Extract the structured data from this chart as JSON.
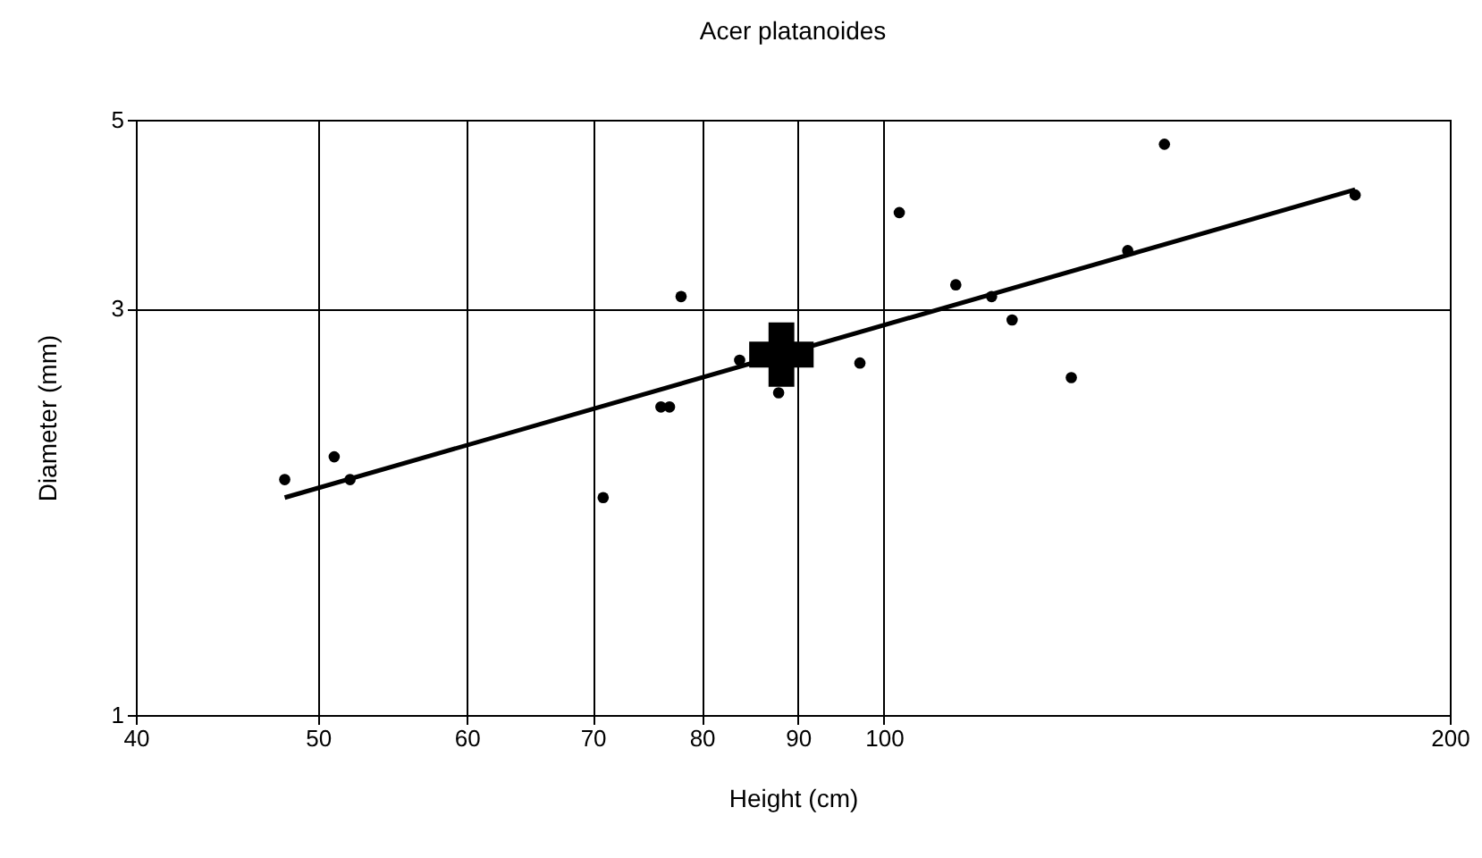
{
  "chart_data": {
    "type": "scatter",
    "title": "Acer platanoides",
    "xlabel": "Height (cm)",
    "ylabel": "Diameter (mm)",
    "log": "xy",
    "grid": true,
    "xlim": [
      40,
      200
    ],
    "xticks": [
      40,
      50,
      60,
      70,
      80,
      90,
      100,
      200
    ],
    "ylim": [
      1,
      5
    ],
    "yticks": [
      1,
      3,
      5
    ],
    "series": [
      {
        "marker": "circle",
        "color": "#000000",
        "x": [
          48.0,
          51.0,
          52.0,
          70.9,
          76.1,
          76.9,
          78.0,
          83.8,
          87.9,
          97.1,
          101.9,
          109.2,
          114.1,
          117.0,
          125.8,
          134.8,
          141.0,
          178.1
        ],
        "values": [
          1.89,
          2.01,
          1.89,
          1.8,
          2.3,
          2.3,
          3.1,
          2.61,
          2.39,
          2.59,
          3.89,
          3.2,
          3.1,
          2.91,
          2.49,
          3.51,
          4.68,
          4.08
        ]
      },
      {
        "marker": "cross",
        "color": "#000000",
        "x": [
          88.2
        ],
        "values": [
          2.65
        ]
      },
      {
        "type": "line",
        "marker": "none",
        "line_style": "solid",
        "color": "#000000",
        "x": [
          48.0,
          178.1
        ],
        "values": [
          1.8,
          4.14
        ]
      }
    ]
  }
}
